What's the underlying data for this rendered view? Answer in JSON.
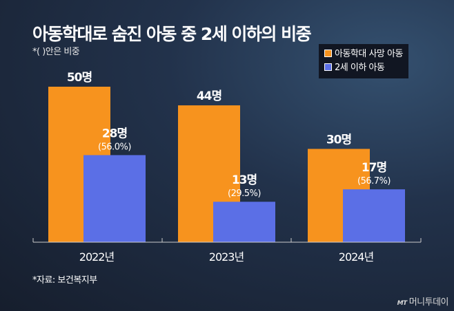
{
  "chart_data": {
    "type": "bar",
    "title": "아동학대로 숨진 아동 중 2세 이하의 비중",
    "note": "*( )안은 비중",
    "categories": [
      "2022년",
      "2023년",
      "2024년"
    ],
    "unit": "명",
    "series": [
      {
        "name": "아동학대 사망 아동",
        "color": "#f7931e",
        "values": [
          50,
          44,
          30
        ],
        "labels": [
          "50명",
          "44명",
          "30명"
        ]
      },
      {
        "name": "2세 이하 아동",
        "color": "#5b6fe6",
        "values": [
          28,
          13,
          17
        ],
        "labels": [
          "28명",
          "13명",
          "17명"
        ],
        "shares": [
          "(56.0%)",
          "(29.5%)",
          "(56.7%)"
        ]
      }
    ],
    "source": "*자료: 보건복지부"
  },
  "brand": {
    "mark": "MT",
    "name": "머니투데이"
  }
}
